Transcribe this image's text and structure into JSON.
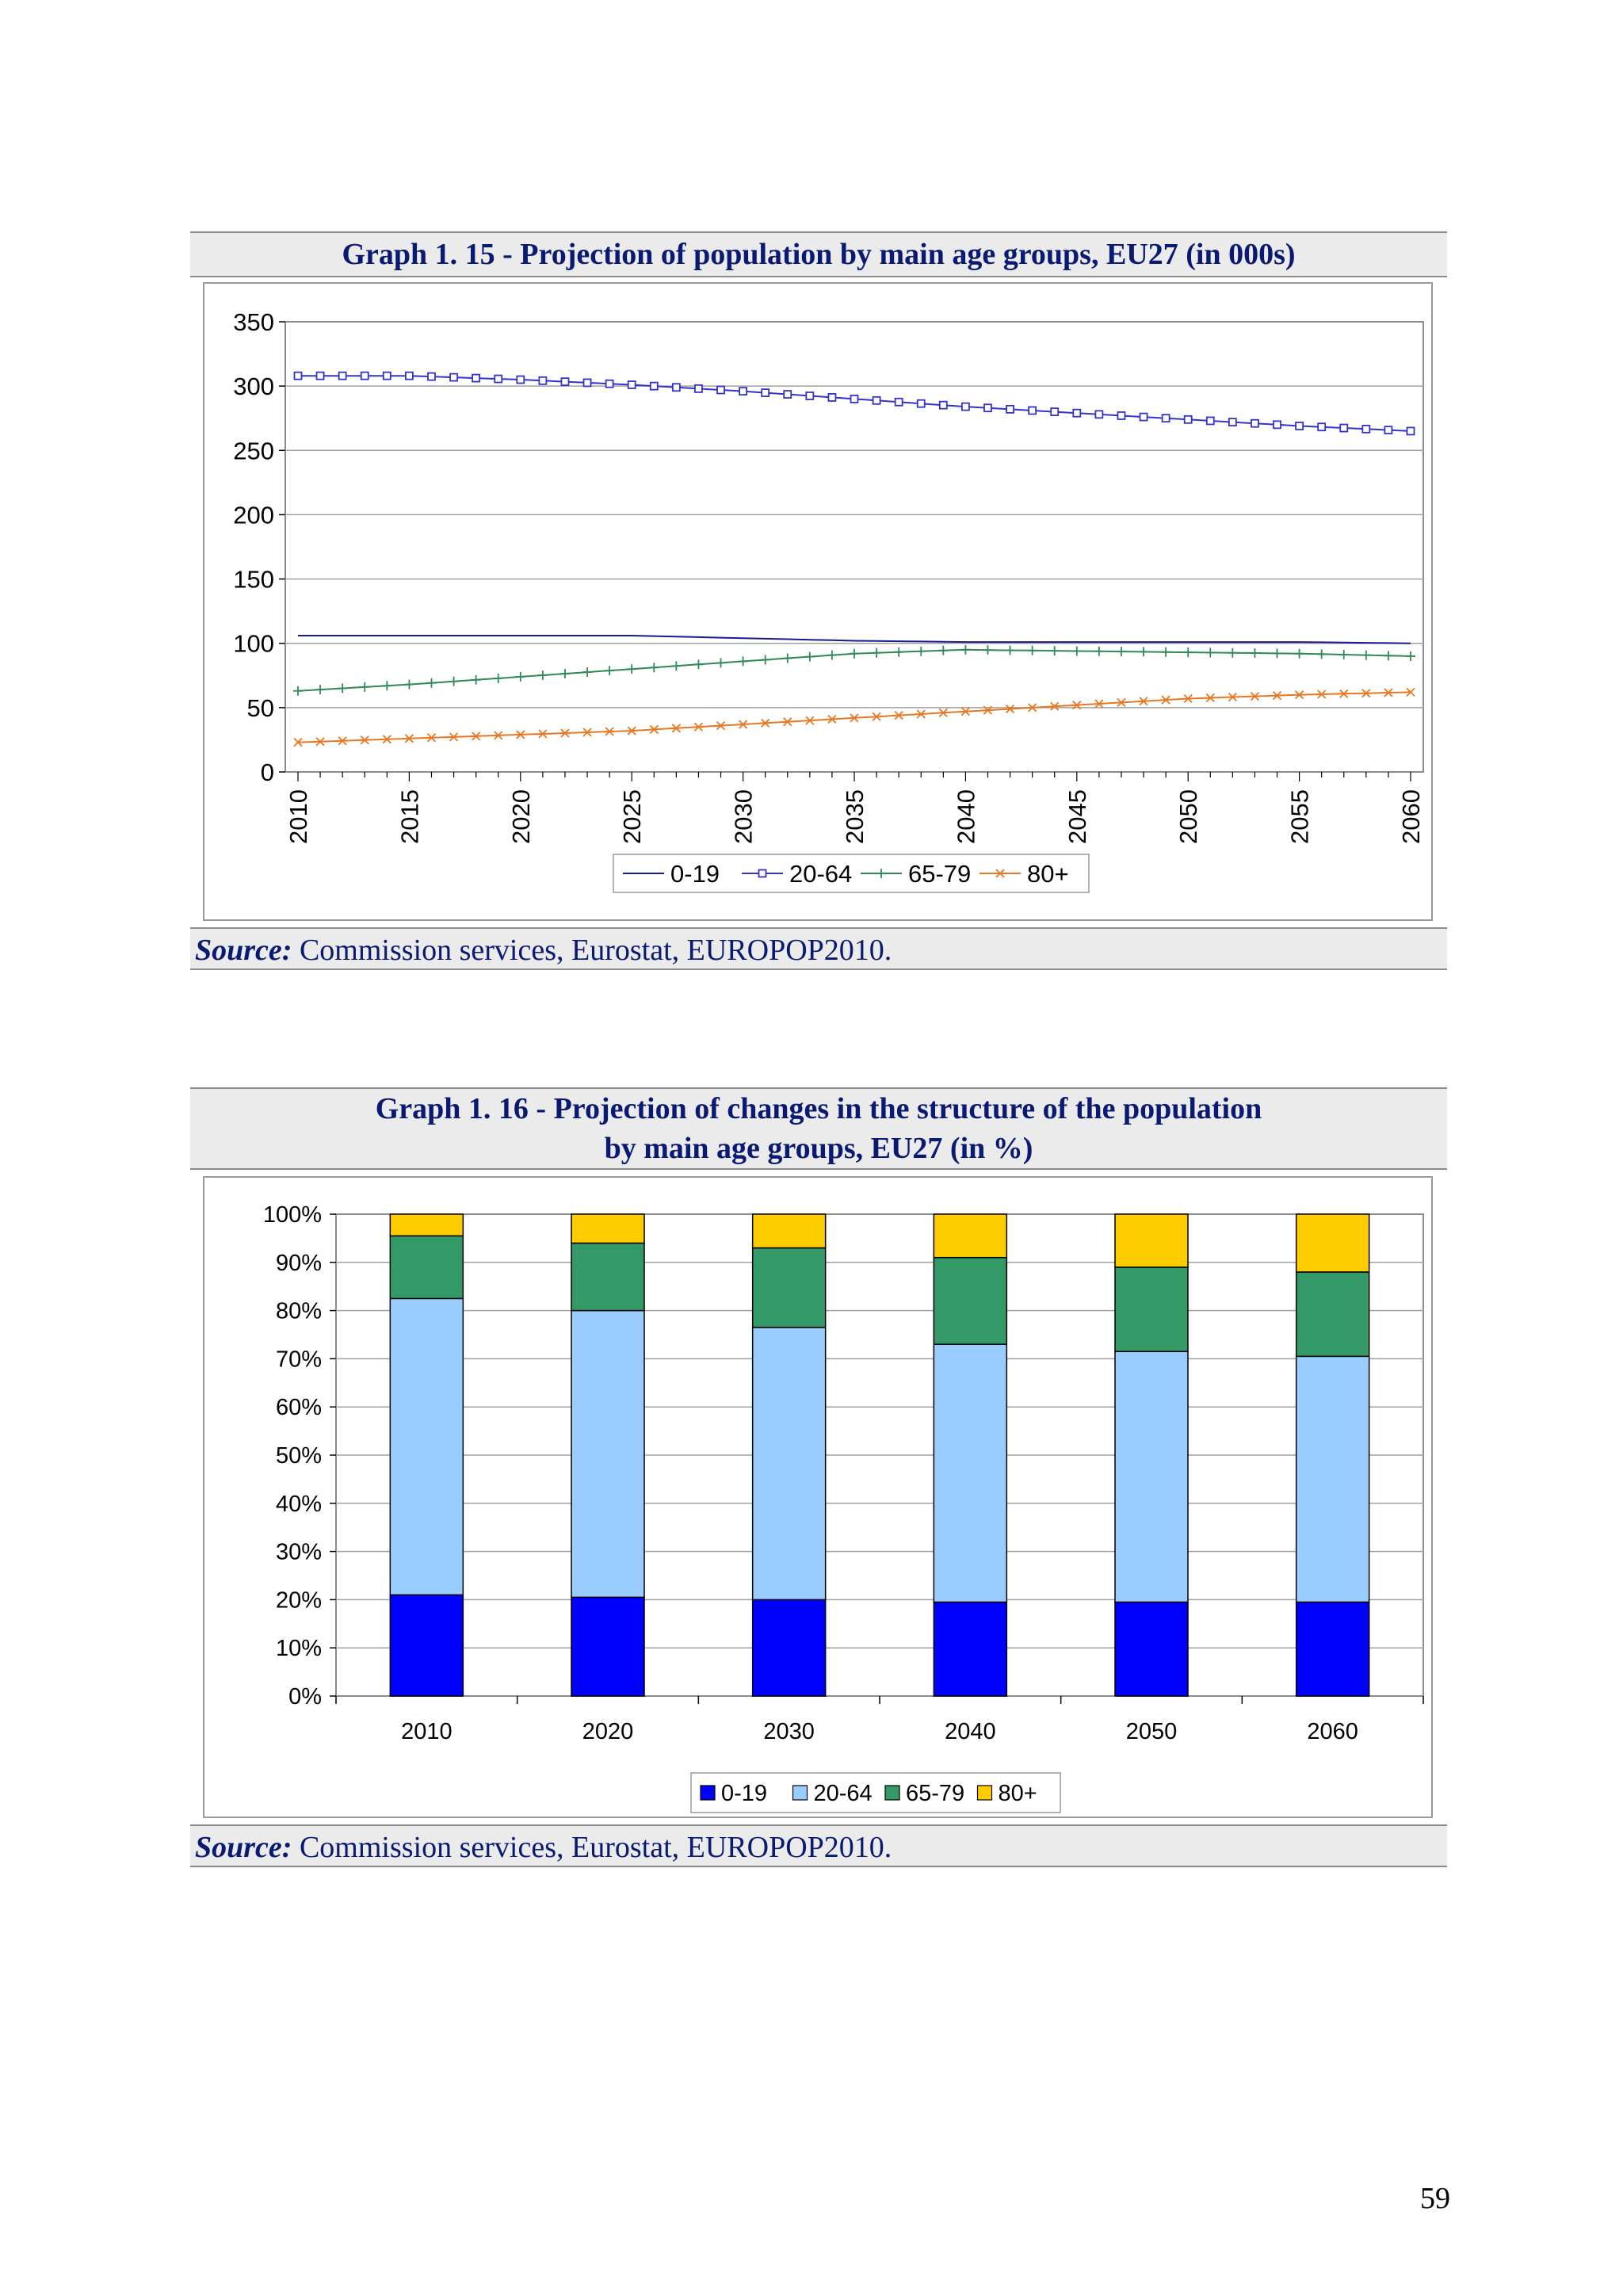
{
  "page_number": "59",
  "graph15": {
    "title": "Graph 1. 15 - Projection of population by main age groups, EU27 (in 000s)",
    "source_label": "Source:",
    "source_text": " Commission services, Eurostat, EUROPOP2010.",
    "chart_data": {
      "type": "line",
      "title": "Graph 1. 15 - Projection of population by main age groups, EU27 (in 000s)",
      "xlabel": "",
      "ylabel": "",
      "ylim": [
        0,
        350
      ],
      "y_ticks": [
        "0",
        "50",
        "100",
        "150",
        "200",
        "250",
        "300",
        "350"
      ],
      "x_ticks": [
        "2010",
        "2015",
        "2020",
        "2025",
        "2030",
        "2035",
        "2040",
        "2045",
        "2050",
        "2055",
        "2060"
      ],
      "x_range": [
        2010,
        2060
      ],
      "grid": "horizontal",
      "legend": "bottom",
      "series": [
        {
          "name": "0-19",
          "color": "#1a1a8c",
          "marker": "none",
          "x": [
            2010,
            2015,
            2020,
            2025,
            2030,
            2035,
            2040,
            2045,
            2050,
            2055,
            2060
          ],
          "values": [
            106,
            106,
            106,
            106,
            104,
            102,
            101,
            101,
            101,
            101,
            100
          ]
        },
        {
          "name": "20-64",
          "color": "#3333cc",
          "marker": "square",
          "x": [
            2010,
            2015,
            2020,
            2025,
            2030,
            2035,
            2040,
            2045,
            2050,
            2055,
            2060
          ],
          "values": [
            308,
            308,
            305,
            301,
            296,
            290,
            284,
            279,
            274,
            269,
            265
          ]
        },
        {
          "name": "65-79",
          "color": "#2e8b57",
          "marker": "plus",
          "x": [
            2010,
            2015,
            2020,
            2025,
            2030,
            2035,
            2040,
            2045,
            2050,
            2055,
            2060
          ],
          "values": [
            63,
            68,
            74,
            80,
            86,
            92,
            95,
            94,
            93,
            92,
            90
          ]
        },
        {
          "name": "80+",
          "color": "#e87722",
          "marker": "x",
          "x": [
            2010,
            2015,
            2020,
            2025,
            2030,
            2035,
            2040,
            2045,
            2050,
            2055,
            2060
          ],
          "values": [
            23,
            26,
            29,
            32,
            37,
            42,
            47,
            52,
            57,
            60,
            62
          ]
        }
      ]
    }
  },
  "graph16": {
    "title_line1": "Graph 1. 16 - Projection of changes in the structure of the population",
    "title_line2": "by main age groups, EU27 (in %)",
    "source_label": "Source:",
    "source_text": " Commission services, Eurostat, EUROPOP2010.",
    "chart_data": {
      "type": "bar",
      "stacked": true,
      "title": "Graph 1. 16 - Projection of changes in the structure of the population by main age groups, EU27 (in %)",
      "xlabel": "",
      "ylabel": "",
      "ylim": [
        0,
        100
      ],
      "y_ticks": [
        "0%",
        "10%",
        "20%",
        "30%",
        "40%",
        "50%",
        "60%",
        "70%",
        "80%",
        "90%",
        "100%"
      ],
      "categories": [
        "2010",
        "2020",
        "2030",
        "2040",
        "2050",
        "2060"
      ],
      "grid": "horizontal",
      "legend": "bottom",
      "series": [
        {
          "name": "0-19",
          "color": "#0000ff",
          "values": [
            21,
            20.5,
            20,
            19.5,
            19.5,
            19.5
          ]
        },
        {
          "name": "20-64",
          "color": "#99ccff",
          "values": [
            61.5,
            59.5,
            56.5,
            53.5,
            52,
            51
          ]
        },
        {
          "name": "65-79",
          "color": "#339966",
          "values": [
            13,
            14,
            16.5,
            18,
            17.5,
            17.5
          ]
        },
        {
          "name": "80+",
          "color": "#ffcc00",
          "values": [
            4.5,
            6,
            7,
            9,
            11,
            12
          ]
        }
      ]
    }
  }
}
